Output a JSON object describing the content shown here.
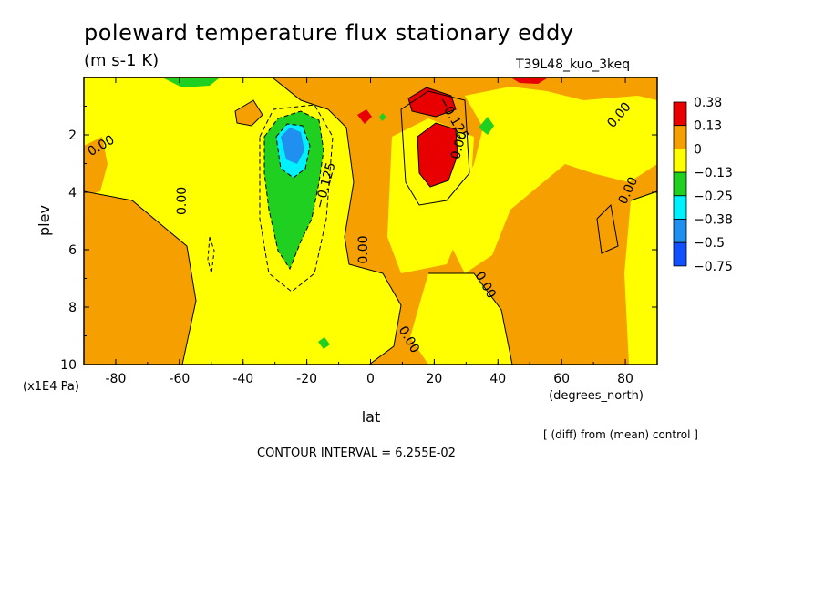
{
  "figure": {
    "title": "poleward temperature flux stationary eddy",
    "units": "(m s-1 K)",
    "run_name": "T39L48_kuo_3keq",
    "diff_note": "[ (diff) from (mean) control ]",
    "contour_interval": "CONTOUR INTERVAL = 6.255E-02"
  },
  "chart_data": {
    "type": "heatmap",
    "title": "poleward temperature flux stationary eddy",
    "xlabel": "lat",
    "xunits": "(degrees_north)",
    "ylabel": "plev",
    "yunits": "(x1E4 Pa)",
    "xlim": [
      -90,
      90
    ],
    "ylim": [
      10,
      0
    ],
    "x_ticks": [
      -80,
      -60,
      -40,
      -20,
      0,
      20,
      40,
      60,
      80
    ],
    "y_ticks": [
      2,
      4,
      6,
      8,
      10
    ],
    "levels": [
      {
        "label": "0.38",
        "color": "#e80000"
      },
      {
        "label": "0.13",
        "color": "#f5a000"
      },
      {
        "label": "0",
        "color": "#ffff00"
      },
      {
        "label": "−0.13",
        "color": "#20d020"
      },
      {
        "label": "−0.25",
        "color": "#00f0ff"
      },
      {
        "label": "−0.38",
        "color": "#2090f0"
      },
      {
        "label": "−0.5",
        "color": "#1050ff"
      },
      {
        "label": "−0.75",
        "color": ""
      }
    ],
    "contour_labels": [
      {
        "text": "0.00",
        "lat": -84,
        "plev": 2.5,
        "angle": -30
      },
      {
        "text": "0.00",
        "lat": -58,
        "plev": 4.3,
        "angle": -90
      },
      {
        "text": "−0.125",
        "lat": -13,
        "plev": 3.8,
        "angle": -75
      },
      {
        "text": "0.00",
        "lat": -1,
        "plev": 6.0,
        "angle": -90
      },
      {
        "text": "−0.125",
        "lat": 25,
        "plev": 1.5,
        "angle": 60
      },
      {
        "text": "0.00",
        "lat": 29,
        "plev": 2.4,
        "angle": -75
      },
      {
        "text": "0.00",
        "lat": 35,
        "plev": 7.3,
        "angle": 60
      },
      {
        "text": "0.00",
        "lat": 11,
        "plev": 9.2,
        "angle": 60
      },
      {
        "text": "0.00",
        "lat": 79,
        "plev": 1.4,
        "angle": -50
      },
      {
        "text": "0.00",
        "lat": 82,
        "plev": 4.0,
        "angle": -65
      }
    ]
  }
}
